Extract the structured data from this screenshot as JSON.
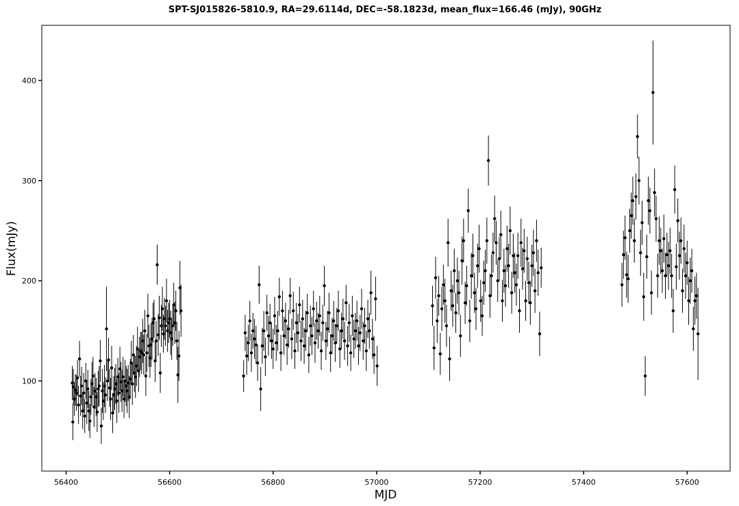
{
  "chart_data": {
    "type": "scatter",
    "title": "SPT-SJ015826-5810.9, RA=29.6114d, DEC=-58.1823d, mean_flux=166.46 (mJy), 90GHz",
    "xlabel": "MJD",
    "ylabel": "Flux(mJy)",
    "xlim": [
      56353,
      57683
    ],
    "ylim": [
      10,
      455
    ],
    "xticks": [
      56400,
      56600,
      56800,
      57000,
      57200,
      57400,
      57600
    ],
    "yticks": [
      100,
      200,
      300,
      400
    ],
    "grid": false,
    "legend": "none",
    "marker_color": "#000000",
    "error_bars": true,
    "series": [
      {
        "x": [
          56412,
          56413,
          56414,
          56416,
          56418,
          56420,
          56422,
          56424,
          56426,
          56428,
          56430,
          56432,
          56434,
          56436,
          56438,
          56440,
          56442,
          56444,
          56446,
          56448,
          56450,
          56452,
          56454,
          56456,
          56458,
          56460,
          56462,
          56464,
          56466,
          56468,
          56470,
          56472,
          56474,
          56476,
          56478,
          56480,
          56482,
          56484,
          56486,
          56488,
          56490,
          56492,
          56494,
          56496,
          56498,
          56500,
          56502,
          56504,
          56506,
          56508,
          56510,
          56512,
          56514,
          56516,
          56518,
          56520,
          56522,
          56524,
          56526,
          56528,
          56530,
          56532,
          56534,
          56536,
          56538,
          56540,
          56542,
          56544,
          56546,
          56548,
          56550,
          56552,
          56554,
          56556,
          56558,
          56560,
          56562,
          56564,
          56566,
          56568,
          56570,
          56572,
          56574,
          56576,
          56578,
          56580,
          56582,
          56584,
          56586,
          56588,
          56590,
          56592,
          56594,
          56596,
          56598,
          56600,
          56602,
          56604,
          56606,
          56608,
          56610,
          56612,
          56614,
          56616,
          56618,
          56620,
          56622
        ],
        "y": [
          98,
          59,
          94,
          82,
          91,
          88,
          103,
          76,
          122,
          85,
          95,
          70,
          88,
          65,
          100,
          78,
          92,
          70,
          60,
          84,
          97,
          105,
          74,
          90,
          84,
          69,
          92,
          95,
          120,
          55,
          90,
          80,
          95,
          86,
          152,
          100,
          121,
          93,
          82,
          113,
          68,
          86,
          92,
          97,
          80,
          104,
          88,
          112,
          99,
          90,
          104,
          82,
          100,
          95,
          90,
          98,
          84,
          102,
          118,
          97,
          126,
          108,
          104,
          115,
          132,
          110,
          124,
          130,
          128,
          140,
          126,
          150,
          105,
          128,
          165,
          135,
          123,
          136,
          142,
          158,
          162,
          120,
          140,
          216,
          146,
          163,
          108,
          155,
          172,
          147,
          162,
          155,
          180,
          150,
          158,
          162,
          148,
          142,
          155,
          176,
          158,
          170,
          140,
          106,
          125,
          193,
          170
        ],
        "yerr": [
          17,
          18,
          18,
          17,
          16,
          18,
          18,
          19,
          18,
          20,
          19,
          18,
          20,
          17,
          18,
          21,
          19,
          20,
          17,
          18,
          22,
          19,
          20,
          18,
          19,
          20,
          18,
          20,
          21,
          18,
          22,
          19,
          21,
          18,
          42,
          20,
          22,
          19,
          21,
          22,
          20,
          19,
          21,
          20,
          22,
          19,
          20,
          22,
          20,
          21,
          20,
          19,
          21,
          20,
          22,
          18,
          21,
          20,
          22,
          21,
          20,
          19,
          21,
          20,
          22,
          21,
          20,
          19,
          21,
          22,
          20,
          21,
          20,
          19,
          22,
          21,
          20,
          22,
          21,
          20,
          19,
          21,
          20,
          20,
          21,
          22,
          20,
          21,
          22,
          19,
          21,
          20,
          22,
          21,
          20,
          19,
          22,
          21,
          20,
          22,
          21,
          20,
          19,
          28,
          25,
          27,
          26
        ]
      },
      {
        "x": [
          56743,
          56746,
          56749,
          56752,
          56755,
          56758,
          56761,
          56764,
          56767,
          56770,
          56773,
          56776,
          56779,
          56782,
          56785,
          56788,
          56791,
          56794,
          56797,
          56800,
          56803,
          56806,
          56809,
          56812,
          56815,
          56818,
          56821,
          56824,
          56827,
          56830,
          56833,
          56836,
          56839,
          56842,
          56845,
          56848,
          56851,
          56854,
          56857,
          56860,
          56863,
          56866,
          56869,
          56872,
          56875,
          56878,
          56881,
          56884,
          56887,
          56890,
          56893,
          56896,
          56899,
          56902,
          56905,
          56908,
          56911,
          56914,
          56917,
          56920,
          56923,
          56926,
          56929,
          56932,
          56935,
          56938,
          56941,
          56944,
          56947,
          56950,
          56953,
          56956,
          56959,
          56962,
          56965,
          56968,
          56971,
          56974,
          56977,
          56980,
          56983,
          56986,
          56989,
          56992,
          56995,
          56998,
          57001
        ],
        "y": [
          105,
          148,
          125,
          138,
          160,
          128,
          150,
          142,
          136,
          118,
          196,
          92,
          135,
          150,
          124,
          168,
          145,
          158,
          140,
          132,
          165,
          138,
          150,
          184,
          128,
          170,
          145,
          160,
          136,
          152,
          185,
          142,
          170,
          130,
          158,
          148,
          176,
          140,
          162,
          135,
          150,
          168,
          126,
          155,
          145,
          172,
          138,
          160,
          150,
          165,
          130,
          158,
          195,
          140,
          152,
          168,
          128,
          145,
          160,
          138,
          155,
          170,
          132,
          150,
          162,
          140,
          178,
          135,
          158,
          128,
          165,
          142,
          150,
          160,
          135,
          148,
          172,
          140,
          155,
          130,
          162,
          150,
          188,
          142,
          126,
          182,
          115
        ],
        "yerr": [
          16,
          18,
          19,
          18,
          20,
          19,
          18,
          20,
          19,
          18,
          19,
          22,
          18,
          20,
          19,
          18,
          20,
          19,
          18,
          20,
          19,
          18,
          20,
          19,
          18,
          20,
          19,
          18,
          20,
          19,
          18,
          20,
          19,
          18,
          20,
          19,
          18,
          20,
          19,
          18,
          20,
          19,
          18,
          20,
          19,
          18,
          20,
          19,
          18,
          20,
          19,
          18,
          20,
          19,
          18,
          20,
          19,
          18,
          20,
          19,
          18,
          20,
          19,
          18,
          20,
          19,
          18,
          20,
          19,
          18,
          20,
          19,
          18,
          20,
          19,
          18,
          20,
          19,
          18,
          20,
          19,
          18,
          22,
          20,
          19,
          22,
          20
        ]
      },
      {
        "x": [
          57108,
          57111,
          57114,
          57117,
          57120,
          57123,
          57126,
          57129,
          57132,
          57135,
          57138,
          57141,
          57144,
          57147,
          57150,
          57153,
          57156,
          57159,
          57162,
          57165,
          57168,
          57171,
          57174,
          57177,
          57180,
          57183,
          57186,
          57189,
          57192,
          57195,
          57198,
          57201,
          57204,
          57207,
          57210,
          57213,
          57216,
          57219,
          57222,
          57225,
          57228,
          57231,
          57234,
          57237,
          57240,
          57243,
          57246,
          57249,
          57252,
          57255,
          57258,
          57261,
          57264,
          57267,
          57270,
          57273,
          57276,
          57279,
          57282,
          57285,
          57288,
          57291,
          57294,
          57297,
          57300,
          57303,
          57306,
          57309,
          57312,
          57315,
          57318
        ],
        "y": [
          175,
          133,
          203,
          160,
          185,
          127,
          172,
          196,
          180,
          155,
          238,
          122,
          190,
          175,
          210,
          168,
          200,
          188,
          145,
          220,
          240,
          178,
          195,
          270,
          160,
          205,
          225,
          188,
          172,
          215,
          232,
          180,
          165,
          198,
          210,
          240,
          320,
          185,
          205,
          228,
          262,
          238,
          200,
          222,
          246,
          180,
          210,
          195,
          232,
          215,
          250,
          188,
          225,
          208,
          196,
          225,
          170,
          238,
          212,
          230,
          180,
          222,
          198,
          178,
          215,
          228,
          190,
          240,
          208,
          147,
          213
        ],
        "yerr": [
          20,
          22,
          21,
          22,
          20,
          21,
          22,
          20,
          22,
          21,
          24,
          22,
          20,
          21,
          22,
          20,
          23,
          22,
          21,
          24,
          22,
          21,
          20,
          22,
          21,
          23,
          22,
          20,
          21,
          22,
          24,
          21,
          20,
          22,
          21,
          23,
          25,
          22,
          21,
          20,
          23,
          22,
          21,
          22,
          24,
          21,
          22,
          21,
          23,
          22,
          24,
          21,
          22,
          20,
          21,
          23,
          22,
          24,
          21,
          22,
          20,
          22,
          21,
          22,
          21,
          23,
          22,
          21,
          23,
          22,
          20
        ]
      },
      {
        "x": [
          57474,
          57477,
          57480,
          57483,
          57486,
          57489,
          57492,
          57495,
          57498,
          57501,
          57504,
          57507,
          57510,
          57513,
          57516,
          57519,
          57522,
          57525,
          57528,
          57531,
          57534,
          57537,
          57540,
          57543,
          57546,
          57549,
          57552,
          57555,
          57558,
          57561,
          57564,
          57567,
          57570,
          57573,
          57576,
          57579,
          57582,
          57585,
          57588,
          57591,
          57594,
          57597,
          57600,
          57603,
          57606,
          57609,
          57612,
          57615,
          57618,
          57621
        ],
        "y": [
          196,
          226,
          243,
          206,
          202,
          250,
          265,
          280,
          240,
          284,
          344,
          300,
          228,
          258,
          184,
          105,
          224,
          280,
          270,
          188,
          388,
          288,
          262,
          205,
          240,
          230,
          210,
          242,
          205,
          226,
          215,
          230,
          205,
          170,
          291,
          214,
          260,
          225,
          240,
          190,
          232,
          205,
          218,
          180,
          200,
          210,
          152,
          180,
          185,
          147
        ],
        "yerr": [
          22,
          24,
          22,
          23,
          24,
          22,
          23,
          24,
          22,
          23,
          22,
          24,
          23,
          22,
          24,
          20,
          22,
          24,
          23,
          22,
          52,
          24,
          23,
          22,
          24,
          23,
          22,
          24,
          23,
          22,
          24,
          23,
          22,
          22,
          24,
          23,
          22,
          24,
          23,
          22,
          24,
          23,
          22,
          24,
          23,
          22,
          22,
          24,
          23,
          46
        ]
      }
    ]
  }
}
